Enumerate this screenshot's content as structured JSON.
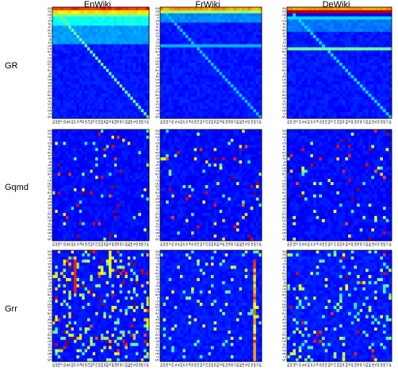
{
  "columns": [
    "EnWiki",
    "FrWiki",
    "DeWiki"
  ],
  "rows": [
    "GR",
    "Gqmd",
    "Grr"
  ],
  "chart_data": {
    "type": "heatmap",
    "layout": "3x3 grid of heatmaps",
    "colormap": "jet",
    "column_titles": [
      "EnWiki",
      "FrWiki",
      "DeWiki"
    ],
    "row_titles": [
      "GR",
      "Gqmd",
      "Grr"
    ],
    "tick_labels": [
      "EN",
      "FR",
      "DE",
      "IT",
      "ES",
      "NL",
      "PL",
      "RU",
      "PT",
      "SV",
      "JA",
      "ZH",
      "UK",
      "CA",
      "NO",
      "FI",
      "CS",
      "HU",
      "KO",
      "TR",
      "RO",
      "ID",
      "AR",
      "DA",
      "SK",
      "SR",
      "LT",
      "EO",
      "BG",
      "HE",
      "SL",
      "VO",
      "KK",
      "HR",
      "LV",
      "MT"
    ],
    "panels": [
      {
        "row": "GR",
        "column": "EnWiki",
        "pattern": "first rows high, strong diagonal, low elsewhere"
      },
      {
        "row": "GR",
        "column": "FrWiki",
        "pattern": "first rows high, faint diagonal"
      },
      {
        "row": "GR",
        "column": "DeWiki",
        "pattern": "first rows very high, one bright band, diagonal"
      },
      {
        "row": "Gqmd",
        "column": "EnWiki",
        "pattern": "sparse scattered cells"
      },
      {
        "row": "Gqmd",
        "column": "FrWiki",
        "pattern": "sparse scattered cells"
      },
      {
        "row": "Gqmd",
        "column": "DeWiki",
        "pattern": "sparse scattered cells"
      },
      {
        "row": "Grr",
        "column": "EnWiki",
        "pattern": "dense scattered high cells"
      },
      {
        "row": "Grr",
        "column": "FrWiki",
        "pattern": "sparse cells, high column near right"
      },
      {
        "row": "Grr",
        "column": "DeWiki",
        "pattern": "medium scattered cells"
      }
    ]
  }
}
